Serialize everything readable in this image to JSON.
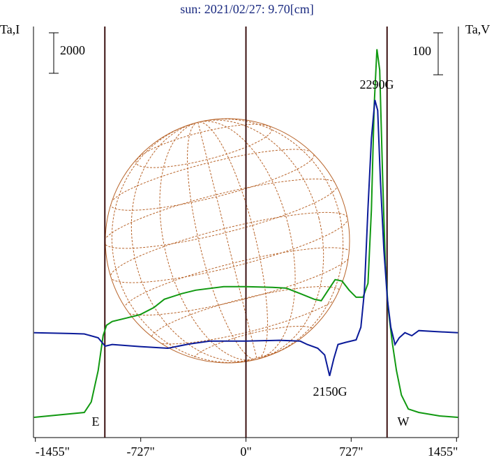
{
  "chart_data": {
    "type": "line",
    "title": "sun: 2021/02/27: 9.70[cm]",
    "y_label": "Ta,I",
    "y2_label": "Ta,V",
    "xlim": [
      -1468,
      1468
    ],
    "xticks": [
      {
        "value": -1455,
        "label": "-1455\""
      },
      {
        "value": -727,
        "label": "-727\""
      },
      {
        "value": 0,
        "label": "0\""
      },
      {
        "value": 727,
        "label": "727\""
      },
      {
        "value": 1455,
        "label": "1455\""
      }
    ],
    "ylim": [
      -1000,
      19300
    ],
    "y2lim": [
      -250,
      730
    ],
    "y_scale_bar": 2000,
    "y2_scale_bar": 100,
    "vlines": [
      -975,
      0,
      975
    ],
    "annotations": [
      "E",
      "W",
      "2290G",
      "2150G"
    ],
    "series": [
      {
        "name": "I",
        "color": "#119911",
        "x": [
          -1464,
          -1117,
          -1069,
          -1021,
          -987,
          -963,
          -924,
          -828,
          -732,
          -636,
          -564,
          -443,
          -347,
          -154,
          0,
          183,
          279,
          375,
          472,
          520,
          568,
          616,
          664,
          713,
          761,
          809,
          843,
          867,
          886,
          905,
          924,
          944,
          963,
          982,
          1011,
          1040,
          1074,
          1122,
          1194,
          1338,
          1464
        ],
        "values": [
          0,
          240,
          760,
          2310,
          4040,
          4550,
          4730,
          4900,
          5070,
          5420,
          5830,
          6110,
          6280,
          6450,
          6450,
          6420,
          6380,
          6110,
          5830,
          5760,
          6280,
          6800,
          6730,
          6280,
          5930,
          5930,
          6620,
          10250,
          15420,
          18180,
          17150,
          11970,
          7490,
          5420,
          3690,
          2310,
          1100,
          410,
          240,
          70,
          0
        ]
      },
      {
        "name": "V",
        "color": "#0a1a99",
        "axis": "y2",
        "x": [
          -1464,
          -1213,
          -1117,
          -1021,
          -973,
          -924,
          -732,
          -539,
          -395,
          -250,
          0,
          231,
          375,
          424,
          496,
          544,
          578,
          607,
          636,
          688,
          761,
          794,
          818,
          843,
          867,
          891,
          910,
          929,
          953,
          977,
          1001,
          1030,
          1059,
          1098,
          1146,
          1194,
          1290,
          1464
        ],
        "values": [
          0,
          -2,
          -3,
          -12,
          -32,
          -28,
          -33,
          -37,
          -27,
          -20,
          -20,
          -18,
          -20,
          -28,
          -37,
          -53,
          -103,
          -62,
          -28,
          -23,
          -17,
          13,
          97,
          297,
          463,
          555,
          530,
          363,
          197,
          80,
          13,
          -28,
          -12,
          0,
          -7,
          5,
          3,
          0
        ]
      }
    ]
  }
}
